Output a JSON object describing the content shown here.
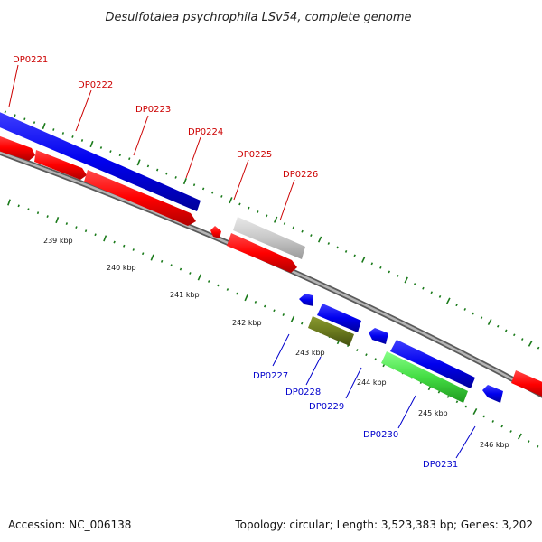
{
  "title": "Desulfotalea psychrophila LSv54, complete genome",
  "accession": "Accession: NC_006138",
  "summary": "Topology: circular; Length: 3,523,383 bp; Genes: 3,202",
  "colors": {
    "forward_label": "#cc0000",
    "reverse_label": "#0000cc",
    "backbone": "#808080",
    "tick": "#1a7a1a",
    "red": "#ff0000",
    "blue": "#0000ee",
    "grey": "#c8c8c8",
    "olive": "#6b7a1e",
    "green": "#44dd44"
  },
  "scale_labels": [
    "239 kbp",
    "240 kbp",
    "241 kbp",
    "242 kbp",
    "243 kbp",
    "244 kbp",
    "245 kbp",
    "246 kbp"
  ],
  "genes_forward": [
    "DP0221",
    "DP0222",
    "DP0223",
    "DP0224",
    "DP0225",
    "DP0226"
  ],
  "genes_reverse": [
    "DP0227",
    "DP0228",
    "DP0229",
    "DP0230",
    "DP0231"
  ]
}
